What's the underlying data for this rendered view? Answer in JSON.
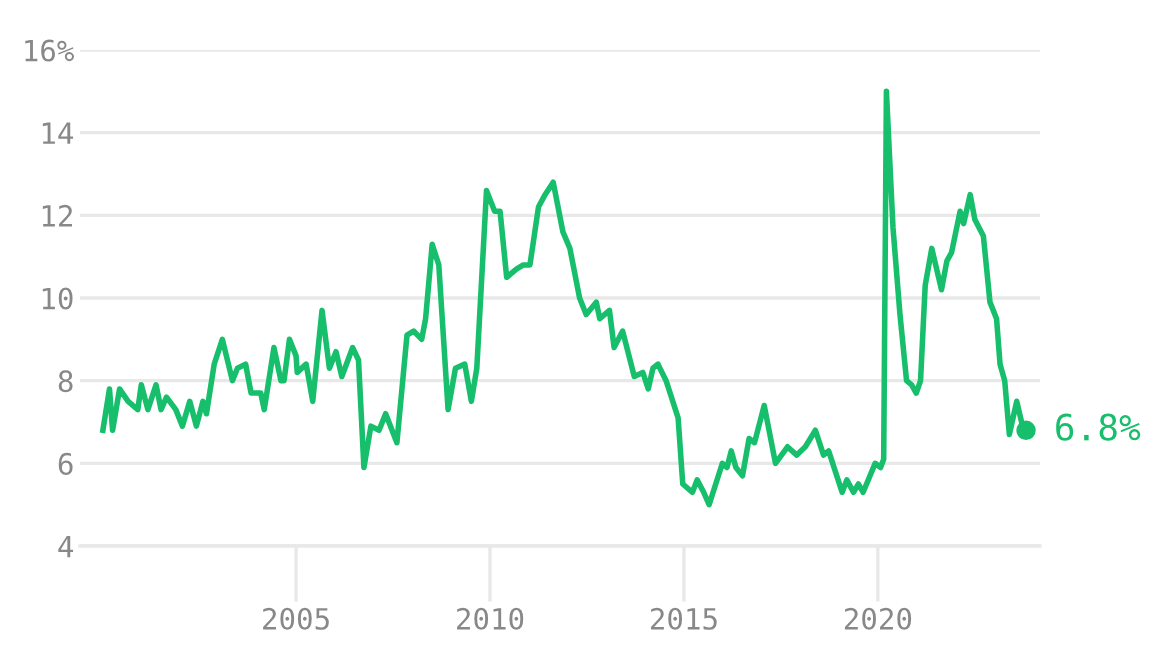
{
  "chart_data": {
    "type": "line",
    "x": [
      2000.02,
      2000.19,
      2000.27,
      2000.45,
      2000.67,
      2000.92,
      2001.01,
      2001.18,
      2001.39,
      2001.52,
      2001.66,
      2001.9,
      2002.07,
      2002.26,
      2002.43,
      2002.6,
      2002.69,
      2002.89,
      2003.1,
      2003.36,
      2003.49,
      2003.7,
      2003.84,
      2004.09,
      2004.18,
      2004.43,
      2004.61,
      2004.69,
      2004.83,
      2005.0,
      2005.03,
      2005.26,
      2005.43,
      2005.67,
      2005.86,
      2006.03,
      2006.18,
      2006.46,
      2006.61,
      2006.75,
      2006.93,
      2007.14,
      2007.31,
      2007.6,
      2007.86,
      2008.03,
      2008.24,
      2008.34,
      2008.51,
      2008.68,
      2008.92,
      2009.11,
      2009.35,
      2009.52,
      2009.66,
      2009.91,
      2010.12,
      2010.26,
      2010.43,
      2010.68,
      2010.86,
      2011.03,
      2011.25,
      2011.42,
      2011.63,
      2011.88,
      2012.06,
      2012.31,
      2012.48,
      2012.74,
      2012.83,
      2013.08,
      2013.2,
      2013.42,
      2013.72,
      2013.94,
      2014.08,
      2014.2,
      2014.33,
      2014.54,
      2014.85,
      2014.97,
      2015.22,
      2015.34,
      2015.51,
      2015.65,
      2015.82,
      2015.99,
      2016.11,
      2016.22,
      2016.34,
      2016.51,
      2016.68,
      2016.82,
      2017.07,
      2017.36,
      2017.67,
      2017.91,
      2018.13,
      2018.39,
      2018.6,
      2018.73,
      2019.08,
      2019.2,
      2019.37,
      2019.5,
      2019.62,
      2019.93,
      2020.07,
      2020.15,
      2020.22,
      2020.39,
      2020.57,
      2020.74,
      2020.87,
      2020.99,
      2021.1,
      2021.22,
      2021.39,
      2021.64,
      2021.78,
      2021.9,
      2022.12,
      2022.21,
      2022.38,
      2022.5,
      2022.72,
      2022.89,
      2023.06,
      2023.15,
      2023.27,
      2023.39,
      2023.58,
      2023.73,
      2023.82
    ],
    "series": [
      {
        "color": "#17bf6c",
        "values": [
          6.8,
          7.8,
          6.8,
          7.8,
          7.5,
          7.3,
          7.9,
          7.3,
          7.9,
          7.3,
          7.6,
          7.3,
          6.9,
          7.5,
          6.9,
          7.5,
          7.2,
          8.4,
          9.0,
          8.0,
          8.3,
          8.4,
          7.7,
          7.7,
          7.3,
          8.8,
          8.0,
          8.0,
          9.0,
          8.6,
          8.2,
          8.4,
          7.5,
          9.7,
          8.3,
          8.7,
          8.1,
          8.8,
          8.5,
          5.9,
          6.9,
          6.8,
          7.2,
          6.5,
          9.1,
          9.2,
          9.0,
          9.5,
          11.3,
          10.8,
          7.3,
          8.3,
          8.4,
          7.5,
          8.3,
          12.6,
          12.1,
          12.1,
          10.5,
          10.7,
          10.8,
          10.8,
          12.2,
          12.5,
          12.8,
          11.6,
          11.2,
          10.0,
          9.6,
          9.9,
          9.5,
          9.7,
          8.8,
          9.2,
          8.1,
          8.2,
          7.8,
          8.3,
          8.4,
          8.0,
          7.1,
          5.5,
          5.3,
          5.6,
          5.3,
          5.0,
          5.5,
          6.0,
          5.9,
          6.3,
          5.9,
          5.7,
          6.6,
          6.5,
          7.4,
          6.0,
          6.4,
          6.2,
          6.4,
          6.8,
          6.2,
          6.3,
          5.3,
          5.6,
          5.3,
          5.5,
          5.3,
          6.0,
          5.9,
          6.1,
          15.0,
          11.7,
          9.6,
          8.0,
          7.9,
          7.7,
          8.0,
          10.3,
          11.2,
          10.2,
          10.9,
          11.1,
          12.1,
          11.8,
          12.5,
          11.9,
          11.5,
          9.9,
          9.5,
          8.4,
          8.0,
          6.7,
          7.5,
          6.9,
          6.8
        ]
      }
    ],
    "xlim": [
      1999.43,
      2024.18
    ],
    "ylim": [
      4,
      16
    ],
    "xticks": [
      2005,
      2010,
      2015,
      2020
    ],
    "yticks": [
      4,
      6,
      8,
      10,
      12,
      14,
      {
        "value": 16,
        "label": "16%"
      }
    ],
    "grid": "y",
    "marker": "none",
    "line_style": "solid",
    "annotations": [
      {
        "text": "6.8%",
        "x": 2023.82,
        "y": 6.8
      }
    ]
  }
}
